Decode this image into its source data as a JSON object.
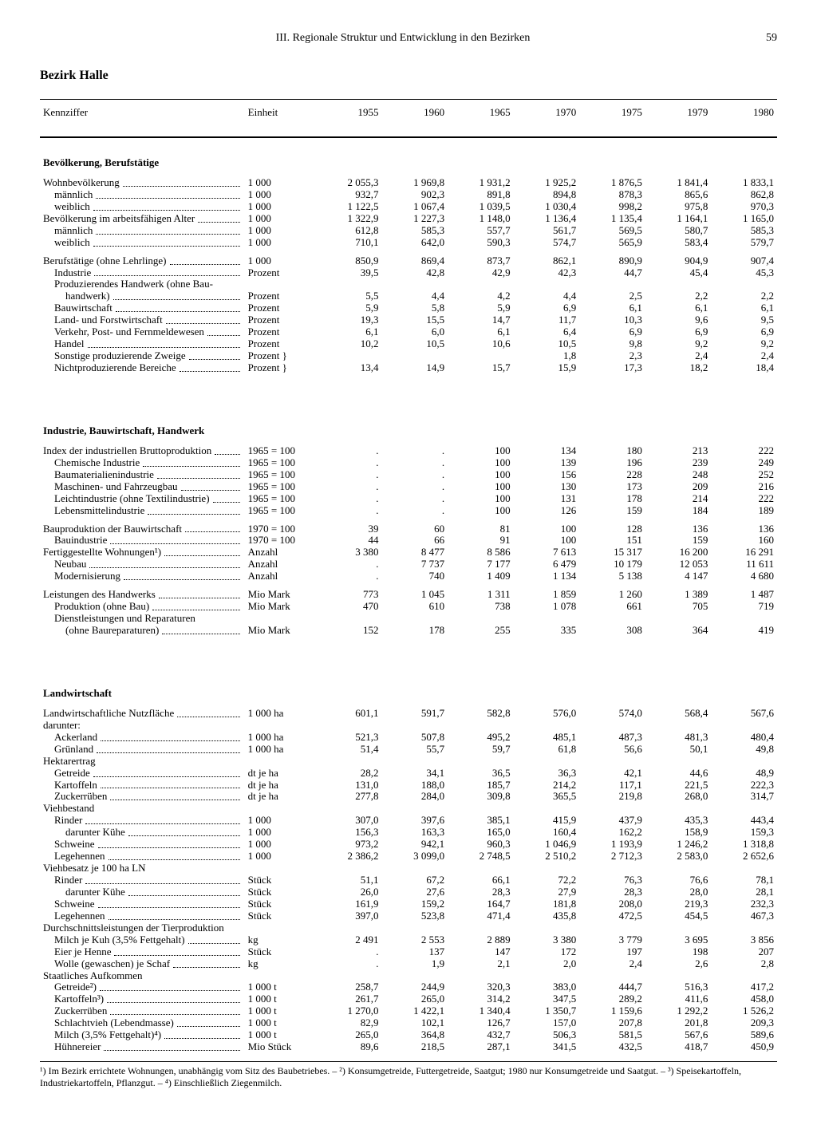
{
  "page": {
    "running_head": "III. Regionale Struktur und Entwicklung in den Bezirken",
    "number": "59",
    "title": "Bezirk Halle"
  },
  "columns": {
    "label": "Kennziffer",
    "unit": "Einheit",
    "years": [
      "1955",
      "1960",
      "1965",
      "1970",
      "1975",
      "1979",
      "1980"
    ]
  },
  "sections": [
    {
      "type": "header",
      "label": "Bevölkerung, Berufstätige"
    },
    {
      "label": "Wohnbevölkerung",
      "unit": "1 000",
      "v": [
        "2 055,3",
        "1 969,8",
        "1 931,2",
        "1 925,2",
        "1 876,5",
        "1 841,4",
        "1 833,1"
      ]
    },
    {
      "label": "männlich",
      "indent": 1,
      "unit": "1 000",
      "v": [
        "932,7",
        "902,3",
        "891,8",
        "894,8",
        "878,3",
        "865,6",
        "862,8"
      ]
    },
    {
      "label": "weiblich",
      "indent": 1,
      "unit": "1 000",
      "v": [
        "1 122,5",
        "1 067,4",
        "1 039,5",
        "1 030,4",
        "998,2",
        "975,8",
        "970,3"
      ]
    },
    {
      "label": "Bevölkerung im arbeitsfähigen Alter",
      "unit": "1 000",
      "v": [
        "1 322,9",
        "1 227,3",
        "1 148,0",
        "1 136,4",
        "1 135,4",
        "1 164,1",
        "1 165,0"
      ]
    },
    {
      "label": "männlich",
      "indent": 1,
      "unit": "1 000",
      "v": [
        "612,8",
        "585,3",
        "557,7",
        "561,7",
        "569,5",
        "580,7",
        "585,3"
      ]
    },
    {
      "label": "weiblich",
      "indent": 1,
      "unit": "1 000",
      "v": [
        "710,1",
        "642,0",
        "590,3",
        "574,7",
        "565,9",
        "583,4",
        "579,7"
      ]
    },
    {
      "type": "spacer"
    },
    {
      "label": "Berufstätige (ohne Lehrlinge)",
      "unit": "1 000",
      "v": [
        "850,9",
        "869,4",
        "873,7",
        "862,1",
        "890,9",
        "904,9",
        "907,4"
      ]
    },
    {
      "label": "Industrie",
      "indent": 1,
      "unit": "Prozent",
      "v": [
        "39,5",
        "42,8",
        "42,9",
        "42,3",
        "44,7",
        "45,4",
        "45,3"
      ]
    },
    {
      "label": "Produzierendes Handwerk (ohne Bau-",
      "indent": 1,
      "nofill": true,
      "unit": "",
      "v": [
        "",
        "",
        "",
        "",
        "",
        "",
        ""
      ]
    },
    {
      "label": "handwerk)",
      "indent": 2,
      "unit": "Prozent",
      "v": [
        "5,5",
        "4,4",
        "4,2",
        "4,4",
        "2,5",
        "2,2",
        "2,2"
      ]
    },
    {
      "label": "Bauwirtschaft",
      "indent": 1,
      "unit": "Prozent",
      "v": [
        "5,9",
        "5,8",
        "5,9",
        "6,9",
        "6,1",
        "6,1",
        "6,1"
      ]
    },
    {
      "label": "Land- und Forstwirtschaft",
      "indent": 1,
      "unit": "Prozent",
      "v": [
        "19,3",
        "15,5",
        "14,7",
        "11,7",
        "10,3",
        "9,6",
        "9,5"
      ]
    },
    {
      "label": "Verkehr, Post- und Fernmeldewesen",
      "indent": 1,
      "unit": "Prozent",
      "v": [
        "6,1",
        "6,0",
        "6,1",
        "6,4",
        "6,9",
        "6,9",
        "6,9"
      ]
    },
    {
      "label": "Handel",
      "indent": 1,
      "unit": "Prozent",
      "v": [
        "10,2",
        "10,5",
        "10,6",
        "10,5",
        "9,8",
        "9,2",
        "9,2"
      ]
    },
    {
      "label": "Sonstige produzierende Zweige",
      "indent": 1,
      "unit": "Prozent }",
      "v": [
        "",
        "",
        "",
        "1,8",
        "2,3",
        "2,4",
        "2,4"
      ],
      "mergeTop": true
    },
    {
      "label": "Nichtproduzierende Bereiche",
      "indent": 1,
      "unit": "Prozent }",
      "v": [
        "13,4",
        "14,9",
        "15,7",
        "15,9",
        "17,3",
        "18,2",
        "18,4"
      ],
      "mergeBottom": true
    },
    {
      "type": "spacer-lg"
    },
    {
      "type": "header",
      "label": "Industrie, Bauwirtschaft, Handwerk"
    },
    {
      "label": "Index der industriellen Bruttoproduktion",
      "unit": "1965 = 100",
      "v": [
        ".",
        ".",
        "100",
        "134",
        "180",
        "213",
        "222"
      ]
    },
    {
      "label": "Chemische Industrie",
      "indent": 1,
      "unit": "1965 = 100",
      "v": [
        ".",
        ".",
        "100",
        "139",
        "196",
        "239",
        "249"
      ]
    },
    {
      "label": "Baumaterialienindustrie",
      "indent": 1,
      "unit": "1965 = 100",
      "v": [
        ".",
        ".",
        "100",
        "156",
        "228",
        "248",
        "252"
      ]
    },
    {
      "label": "Maschinen- und Fahrzeugbau",
      "indent": 1,
      "unit": "1965 = 100",
      "v": [
        ".",
        ".",
        "100",
        "130",
        "173",
        "209",
        "216"
      ]
    },
    {
      "label": "Leichtindustrie (ohne Textilindustrie)",
      "indent": 1,
      "unit": "1965 = 100",
      "v": [
        ".",
        ".",
        "100",
        "131",
        "178",
        "214",
        "222"
      ]
    },
    {
      "label": "Lebensmittelindustrie",
      "indent": 1,
      "unit": "1965 = 100",
      "v": [
        ".",
        ".",
        "100",
        "126",
        "159",
        "184",
        "189"
      ]
    },
    {
      "type": "spacer"
    },
    {
      "label": "Bauproduktion der Bauwirtschaft",
      "unit": "1970 = 100",
      "v": [
        "39",
        "60",
        "81",
        "100",
        "128",
        "136",
        "136"
      ]
    },
    {
      "label": "Bauindustrie",
      "indent": 1,
      "unit": "1970 = 100",
      "v": [
        "44",
        "66",
        "91",
        "100",
        "151",
        "159",
        "160"
      ]
    },
    {
      "label": "Fertiggestellte Wohnungen¹)",
      "unit": "Anzahl",
      "v": [
        "3 380",
        "8 477",
        "8 586",
        "7 613",
        "15 317",
        "16 200",
        "16 291"
      ]
    },
    {
      "label": "Neubau",
      "indent": 1,
      "unit": "Anzahl",
      "v": [
        ".",
        "7 737",
        "7 177",
        "6 479",
        "10 179",
        "12 053",
        "11 611"
      ]
    },
    {
      "label": "Modernisierung",
      "indent": 1,
      "unit": "Anzahl",
      "v": [
        ".",
        "740",
        "1 409",
        "1 134",
        "5 138",
        "4 147",
        "4 680"
      ]
    },
    {
      "type": "spacer"
    },
    {
      "label": "Leistungen des Handwerks",
      "unit": "Mio Mark",
      "v": [
        "773",
        "1 045",
        "1 311",
        "1 859",
        "1 260",
        "1 389",
        "1 487"
      ]
    },
    {
      "label": "Produktion (ohne Bau)",
      "indent": 1,
      "unit": "Mio Mark",
      "v": [
        "470",
        "610",
        "738",
        "1 078",
        "661",
        "705",
        "719"
      ]
    },
    {
      "label": "Dienstleistungen und Reparaturen",
      "indent": 1,
      "nofill": true,
      "unit": "",
      "v": [
        "",
        "",
        "",
        "",
        "",
        "",
        ""
      ]
    },
    {
      "label": "(ohne Baureparaturen)",
      "indent": 2,
      "unit": "Mio Mark",
      "v": [
        "152",
        "178",
        "255",
        "335",
        "308",
        "364",
        "419"
      ]
    },
    {
      "type": "spacer-lg"
    },
    {
      "type": "header",
      "label": "Landwirtschaft"
    },
    {
      "label": "Landwirtschaftliche Nutzfläche",
      "unit": "1 000 ha",
      "v": [
        "601,1",
        "591,7",
        "582,8",
        "576,0",
        "574,0",
        "568,4",
        "567,6"
      ]
    },
    {
      "label": "darunter:",
      "nofill": true,
      "unit": "",
      "v": [
        "",
        "",
        "",
        "",
        "",
        "",
        ""
      ]
    },
    {
      "label": "Ackerland",
      "indent": 1,
      "unit": "1 000 ha",
      "v": [
        "521,3",
        "507,8",
        "495,2",
        "485,1",
        "487,3",
        "481,3",
        "480,4"
      ]
    },
    {
      "label": "Grünland",
      "indent": 1,
      "unit": "1 000 ha",
      "v": [
        "51,4",
        "55,7",
        "59,7",
        "61,8",
        "56,6",
        "50,1",
        "49,8"
      ]
    },
    {
      "label": "Hektarertrag",
      "nofill": true,
      "unit": "",
      "v": [
        "",
        "",
        "",
        "",
        "",
        "",
        ""
      ]
    },
    {
      "label": "Getreide",
      "indent": 1,
      "unit": "dt je ha",
      "v": [
        "28,2",
        "34,1",
        "36,5",
        "36,3",
        "42,1",
        "44,6",
        "48,9"
      ]
    },
    {
      "label": "Kartoffeln",
      "indent": 1,
      "unit": "dt je ha",
      "v": [
        "131,0",
        "188,0",
        "185,7",
        "214,2",
        "117,1",
        "221,5",
        "222,3"
      ]
    },
    {
      "label": "Zuckerrüben",
      "indent": 1,
      "unit": "dt je ha",
      "v": [
        "277,8",
        "284,0",
        "309,8",
        "365,5",
        "219,8",
        "268,0",
        "314,7"
      ]
    },
    {
      "label": "Viehbestand",
      "nofill": true,
      "unit": "",
      "v": [
        "",
        "",
        "",
        "",
        "",
        "",
        ""
      ]
    },
    {
      "label": "Rinder",
      "indent": 1,
      "unit": "1 000",
      "v": [
        "307,0",
        "397,6",
        "385,1",
        "415,9",
        "437,9",
        "435,3",
        "443,4"
      ]
    },
    {
      "label": "darunter Kühe",
      "indent": 2,
      "unit": "1 000",
      "v": [
        "156,3",
        "163,3",
        "165,0",
        "160,4",
        "162,2",
        "158,9",
        "159,3"
      ]
    },
    {
      "label": "Schweine",
      "indent": 1,
      "unit": "1 000",
      "v": [
        "973,2",
        "942,1",
        "960,3",
        "1 046,9",
        "1 193,9",
        "1 246,2",
        "1 318,8"
      ]
    },
    {
      "label": "Legehennen",
      "indent": 1,
      "unit": "1 000",
      "v": [
        "2 386,2",
        "3 099,0",
        "2 748,5",
        "2 510,2",
        "2 712,3",
        "2 583,0",
        "2 652,6"
      ]
    },
    {
      "label": "Viehbesatz je 100 ha LN",
      "nofill": true,
      "unit": "",
      "v": [
        "",
        "",
        "",
        "",
        "",
        "",
        ""
      ]
    },
    {
      "label": "Rinder",
      "indent": 1,
      "unit": "Stück",
      "v": [
        "51,1",
        "67,2",
        "66,1",
        "72,2",
        "76,3",
        "76,6",
        "78,1"
      ]
    },
    {
      "label": "darunter Kühe",
      "indent": 2,
      "unit": "Stück",
      "v": [
        "26,0",
        "27,6",
        "28,3",
        "27,9",
        "28,3",
        "28,0",
        "28,1"
      ]
    },
    {
      "label": "Schweine",
      "indent": 1,
      "unit": "Stück",
      "v": [
        "161,9",
        "159,2",
        "164,7",
        "181,8",
        "208,0",
        "219,3",
        "232,3"
      ]
    },
    {
      "label": "Legehennen",
      "indent": 1,
      "unit": "Stück",
      "v": [
        "397,0",
        "523,8",
        "471,4",
        "435,8",
        "472,5",
        "454,5",
        "467,3"
      ]
    },
    {
      "label": "Durchschnittsleistungen der Tierproduktion",
      "nofill": true,
      "unit": "",
      "v": [
        "",
        "",
        "",
        "",
        "",
        "",
        ""
      ]
    },
    {
      "label": "Milch je Kuh (3,5% Fettgehalt)",
      "indent": 1,
      "unit": "kg",
      "v": [
        "2 491",
        "2 553",
        "2 889",
        "3 380",
        "3 779",
        "3 695",
        "3 856"
      ]
    },
    {
      "label": "Eier je Henne",
      "indent": 1,
      "unit": "Stück",
      "v": [
        ".",
        "137",
        "147",
        "172",
        "197",
        "198",
        "207"
      ]
    },
    {
      "label": "Wolle (gewaschen) je Schaf",
      "indent": 1,
      "unit": "kg",
      "v": [
        ".",
        "1,9",
        "2,1",
        "2,0",
        "2,4",
        "2,6",
        "2,8"
      ]
    },
    {
      "label": "Staatliches Aufkommen",
      "nofill": true,
      "unit": "",
      "v": [
        "",
        "",
        "",
        "",
        "",
        "",
        ""
      ]
    },
    {
      "label": "Getreide²)",
      "indent": 1,
      "unit": "1 000 t",
      "v": [
        "258,7",
        "244,9",
        "320,3",
        "383,0",
        "444,7",
        "516,3",
        "417,2"
      ]
    },
    {
      "label": "Kartoffeln³)",
      "indent": 1,
      "unit": "1 000 t",
      "v": [
        "261,7",
        "265,0",
        "314,2",
        "347,5",
        "289,2",
        "411,6",
        "458,0"
      ]
    },
    {
      "label": "Zuckerrüben",
      "indent": 1,
      "unit": "1 000 t",
      "v": [
        "1 270,0",
        "1 422,1",
        "1 340,4",
        "1 350,7",
        "1 159,6",
        "1 292,2",
        "1 526,2"
      ]
    },
    {
      "label": "Schlachtvieh (Lebendmasse)",
      "indent": 1,
      "unit": "1 000 t",
      "v": [
        "82,9",
        "102,1",
        "126,7",
        "157,0",
        "207,8",
        "201,8",
        "209,3"
      ]
    },
    {
      "label": "Milch (3,5% Fettgehalt)⁴)",
      "indent": 1,
      "unit": "1 000 t",
      "v": [
        "265,0",
        "364,8",
        "432,7",
        "506,3",
        "581,5",
        "567,6",
        "589,6"
      ]
    },
    {
      "label": "Hühnereier",
      "indent": 1,
      "unit": "Mio Stück",
      "v": [
        "89,6",
        "218,5",
        "287,1",
        "341,5",
        "432,5",
        "418,7",
        "450,9"
      ]
    }
  ],
  "footnotes": "¹) Im Bezirk errichtete Wohnungen, unabhängig vom Sitz des Baubetriebes. – ²) Konsumgetreide, Futtergetreide, Saatgut; 1980 nur Konsumgetreide und Saatgut. – ³) Speisekartoffeln, Industriekartoffeln, Pflanzgut. – ⁴) Einschließlich Ziegenmilch."
}
